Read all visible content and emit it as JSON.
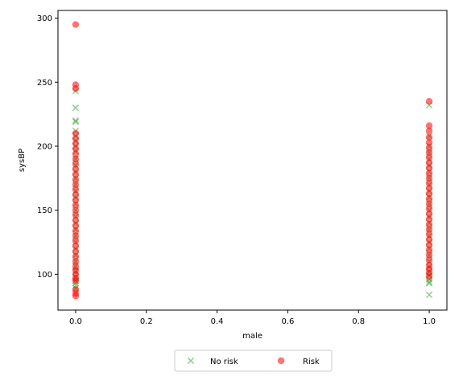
{
  "chart_data": {
    "type": "scatter",
    "title": "",
    "xlabel": "male",
    "ylabel": "sysBP",
    "xlim": [
      -0.05,
      1.05
    ],
    "ylim": [
      72,
      306
    ],
    "xticks": [
      0.0,
      0.2,
      0.4,
      0.6,
      0.8,
      1.0
    ],
    "xtick_labels": [
      "0.0",
      "0.2",
      "0.4",
      "0.6",
      "0.8",
      "1.0"
    ],
    "yticks": [
      100,
      150,
      200,
      250,
      300
    ],
    "ytick_labels": [
      "100",
      "150",
      "200",
      "250",
      "300"
    ],
    "grid": false,
    "legend_position": "bottom-center-outside",
    "series": [
      {
        "name": "No risk",
        "marker": "x",
        "color": "#2ca02c",
        "alpha": 0.55,
        "points": [
          [
            0,
            243
          ],
          [
            0,
            230
          ],
          [
            0,
            220
          ],
          [
            0,
            219
          ],
          [
            0,
            212
          ],
          [
            0,
            208
          ],
          [
            0,
            204
          ],
          [
            0,
            200
          ],
          [
            0,
            196
          ],
          [
            0,
            190
          ],
          [
            0,
            185
          ],
          [
            0,
            180
          ],
          [
            0,
            175
          ],
          [
            0,
            170
          ],
          [
            0,
            165
          ],
          [
            0,
            160
          ],
          [
            0,
            155
          ],
          [
            0,
            150
          ],
          [
            0,
            145
          ],
          [
            0,
            140
          ],
          [
            0,
            135
          ],
          [
            0,
            130
          ],
          [
            0,
            125
          ],
          [
            0,
            120
          ],
          [
            0,
            115
          ],
          [
            0,
            110
          ],
          [
            0,
            106
          ],
          [
            0,
            102
          ],
          [
            0,
            98
          ],
          [
            0,
            95
          ],
          [
            0,
            93
          ],
          [
            0,
            91
          ],
          [
            0,
            89
          ],
          [
            1,
            232
          ],
          [
            1,
            208
          ],
          [
            1,
            200
          ],
          [
            1,
            195
          ],
          [
            1,
            190
          ],
          [
            1,
            185
          ],
          [
            1,
            180
          ],
          [
            1,
            175
          ],
          [
            1,
            170
          ],
          [
            1,
            165
          ],
          [
            1,
            160
          ],
          [
            1,
            155
          ],
          [
            1,
            150
          ],
          [
            1,
            145
          ],
          [
            1,
            140
          ],
          [
            1,
            135
          ],
          [
            1,
            130
          ],
          [
            1,
            125
          ],
          [
            1,
            120
          ],
          [
            1,
            115
          ],
          [
            1,
            110
          ],
          [
            1,
            106
          ],
          [
            1,
            102
          ],
          [
            1,
            99
          ],
          [
            1,
            96
          ],
          [
            1,
            94
          ],
          [
            1,
            93
          ],
          [
            1,
            84
          ]
        ]
      },
      {
        "name": "Risk",
        "marker": "o",
        "color": "#ff0000",
        "alpha": 0.55,
        "points": [
          [
            0,
            295
          ],
          [
            0,
            248
          ],
          [
            0,
            245
          ],
          [
            0,
            210
          ],
          [
            0,
            206
          ],
          [
            0,
            202
          ],
          [
            0,
            198
          ],
          [
            0,
            194
          ],
          [
            0,
            190
          ],
          [
            0,
            186
          ],
          [
            0,
            182
          ],
          [
            0,
            178
          ],
          [
            0,
            174
          ],
          [
            0,
            170
          ],
          [
            0,
            166
          ],
          [
            0,
            162
          ],
          [
            0,
            158
          ],
          [
            0,
            154
          ],
          [
            0,
            150
          ],
          [
            0,
            146
          ],
          [
            0,
            142
          ],
          [
            0,
            138
          ],
          [
            0,
            134
          ],
          [
            0,
            130
          ],
          [
            0,
            126
          ],
          [
            0,
            122
          ],
          [
            0,
            118
          ],
          [
            0,
            114
          ],
          [
            0,
            110
          ],
          [
            0,
            106
          ],
          [
            0,
            103
          ],
          [
            0,
            100
          ],
          [
            0,
            97
          ],
          [
            0,
            95
          ],
          [
            0,
            88
          ],
          [
            0,
            85
          ],
          [
            0,
            83
          ],
          [
            1,
            235
          ],
          [
            1,
            216
          ],
          [
            1,
            212
          ],
          [
            1,
            207
          ],
          [
            1,
            203
          ],
          [
            1,
            199
          ],
          [
            1,
            195
          ],
          [
            1,
            191
          ],
          [
            1,
            187
          ],
          [
            1,
            183
          ],
          [
            1,
            179
          ],
          [
            1,
            175
          ],
          [
            1,
            171
          ],
          [
            1,
            167
          ],
          [
            1,
            163
          ],
          [
            1,
            159
          ],
          [
            1,
            155
          ],
          [
            1,
            151
          ],
          [
            1,
            147
          ],
          [
            1,
            143
          ],
          [
            1,
            139
          ],
          [
            1,
            135
          ],
          [
            1,
            131
          ],
          [
            1,
            127
          ],
          [
            1,
            123
          ],
          [
            1,
            119
          ],
          [
            1,
            115
          ],
          [
            1,
            111
          ],
          [
            1,
            107
          ],
          [
            1,
            104
          ],
          [
            1,
            101
          ],
          [
            1,
            98
          ]
        ]
      }
    ]
  }
}
